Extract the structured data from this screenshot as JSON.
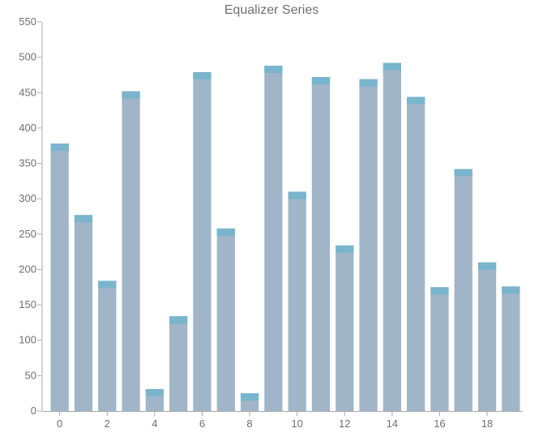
{
  "chart_data": {
    "type": "bar",
    "title": "Equalizer Series",
    "xlabel": "",
    "ylabel": "",
    "x": [
      0,
      1,
      2,
      3,
      4,
      5,
      6,
      7,
      8,
      9,
      10,
      11,
      12,
      13,
      14,
      15,
      16,
      17,
      18,
      19
    ],
    "values": [
      378,
      277,
      184,
      452,
      31,
      134,
      479,
      258,
      25,
      488,
      310,
      472,
      234,
      469,
      492,
      444,
      175,
      342,
      210,
      176
    ],
    "x_tick_labels": [
      "0",
      "2",
      "4",
      "6",
      "8",
      "10",
      "12",
      "14",
      "16",
      "18"
    ],
    "y_tick_labels": [
      "0",
      "50",
      "100",
      "150",
      "200",
      "250",
      "300",
      "350",
      "400",
      "450",
      "500",
      "550"
    ],
    "ylim": [
      0,
      550
    ],
    "grid": false,
    "legend": "none",
    "colors": {
      "bar_body": "#a0b5c8",
      "bar_cap": "#79b5cc",
      "axis": "#a8a8a8",
      "text": "#707070"
    }
  }
}
